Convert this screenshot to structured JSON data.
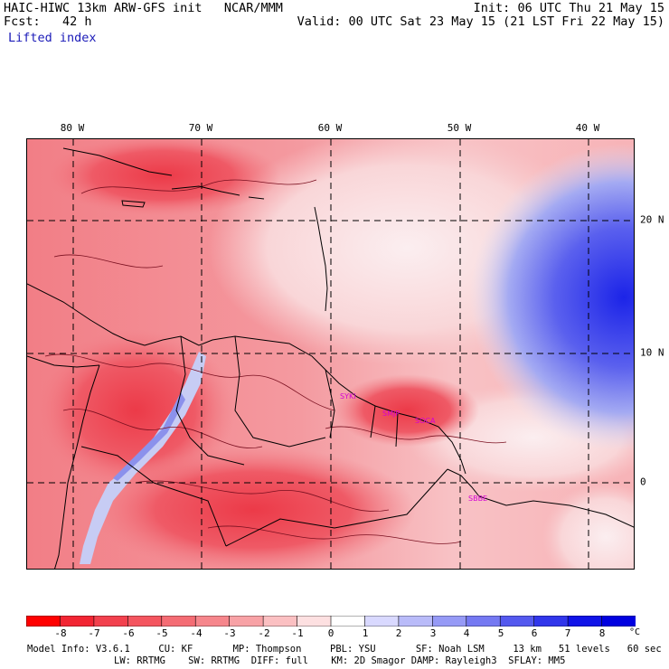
{
  "header": {
    "model_line": "HAIC-HIWC 13km ARW-GFS init   NCAR/MMM",
    "fcst_line": "Fcst:   42 h",
    "field": "Lifted index",
    "init_line": "Init: 06 UTC Thu 21 May 15",
    "valid_line": "Valid: 00 UTC Sat 23 May 15 (21 LST Fri 22 May 15)"
  },
  "map": {
    "longitude_labels": [
      "80 W",
      "70 W",
      "60 W",
      "50 W",
      "40 W"
    ],
    "latitude_labels": [
      "20 N",
      "10 N",
      "0"
    ],
    "station_labels": [
      "SYKI",
      "SMJP",
      "SOCA",
      "SBBE"
    ],
    "colors": {
      "strong_unstable": "#e8283a",
      "unstable": "#f28890",
      "neutral": "#fbe4e6",
      "stable": "#b8c0f0",
      "strong_stable": "#1c24e8",
      "coast": "#000000",
      "contour": "#7a1020",
      "station": "#d400d4"
    }
  },
  "colorbar": {
    "labels": [
      "-8",
      "-7",
      "-6",
      "-5",
      "-4",
      "-3",
      "-2",
      "-1",
      "0",
      "1",
      "2",
      "3",
      "4",
      "5",
      "6",
      "7",
      "8"
    ],
    "unit": "°C",
    "colors": [
      "#ff0000",
      "#f22533",
      "#f2414e",
      "#f4555f",
      "#f46c74",
      "#f6868c",
      "#f8a2a6",
      "#fbc0c2",
      "#fde0e1",
      "#ffffff",
      "#d9d9ff",
      "#b9bbf9",
      "#969af6",
      "#7579f2",
      "#5459ef",
      "#3136eb",
      "#1013e8",
      "#0000e0"
    ]
  },
  "footer": {
    "line1": "Model Info: V3.6.1     CU: KF       MP: Thompson     PBL: YSU       SF: Noah LSM     13 km   51 levels   60 sec",
    "line2": "LW: RRTMG    SW: RRTMG  DIFF: full    KM: 2D Smagor DAMP: Rayleigh3  SFLAY: MM5"
  }
}
